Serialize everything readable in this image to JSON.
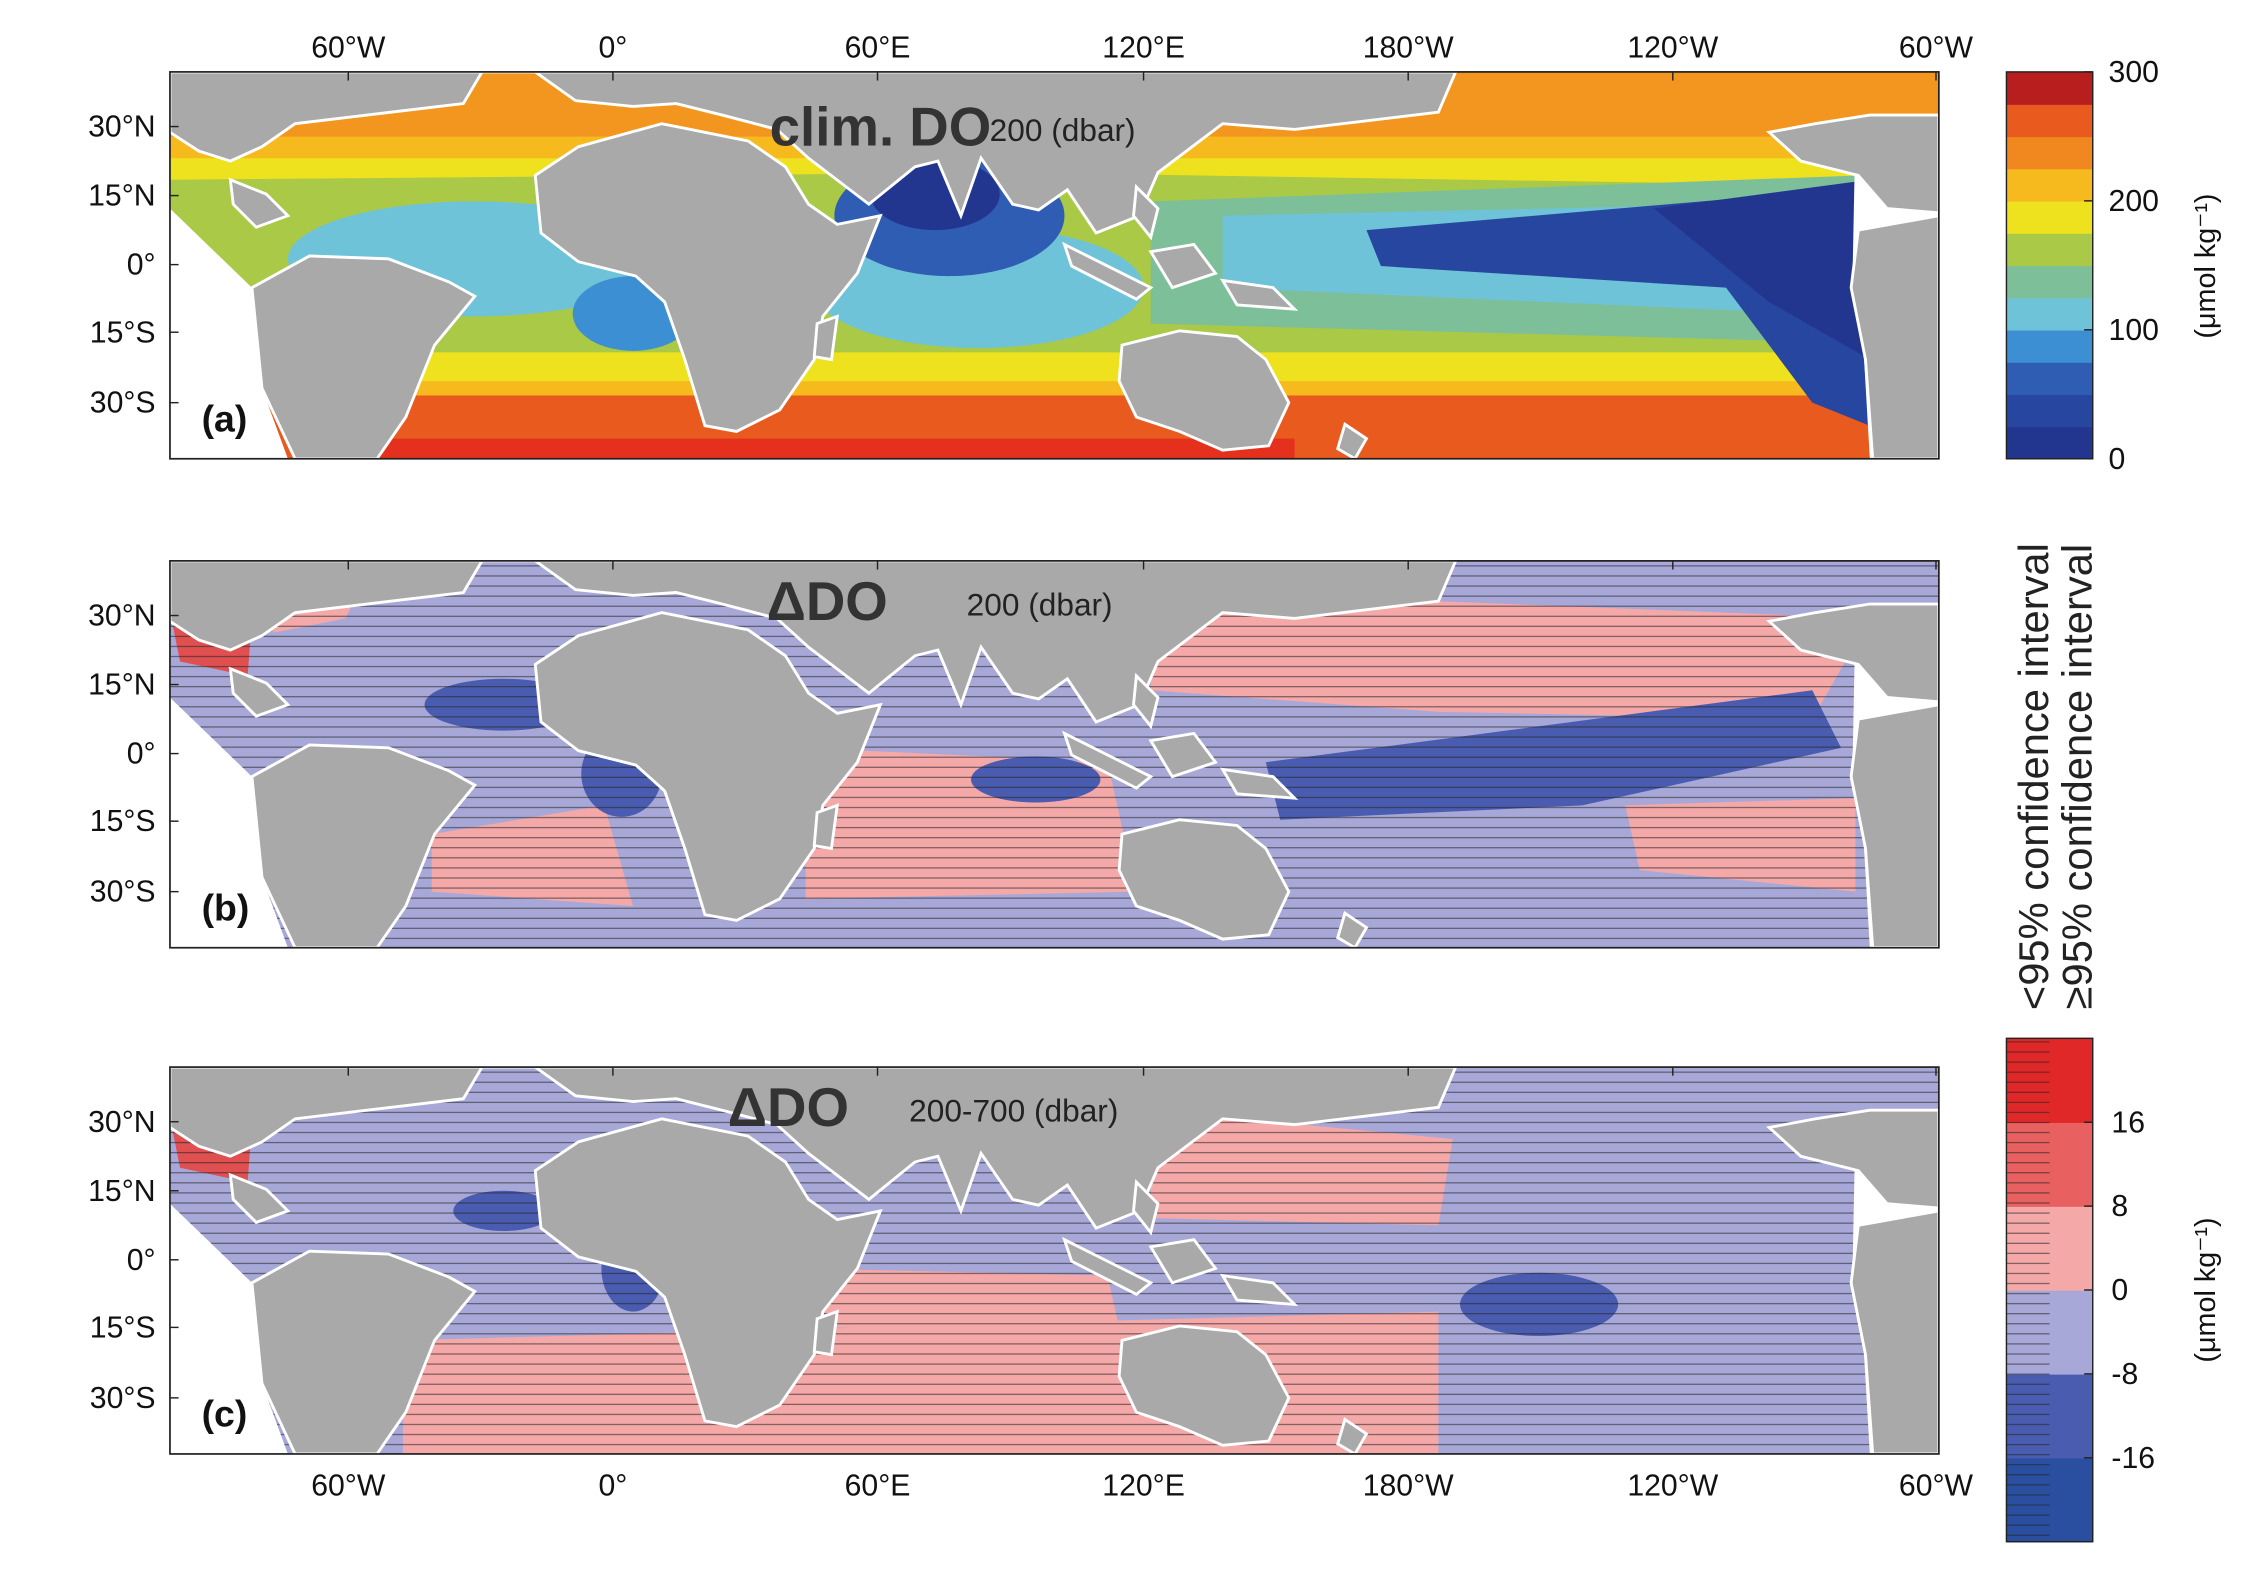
{
  "panels": [
    {
      "label": "(a)",
      "title": "clim. DO",
      "title_sub": "200 (dbar)"
    },
    {
      "label": "(b)",
      "title": "ΔDO",
      "title_sub": "200 (dbar)"
    },
    {
      "label": "(c)",
      "title": "ΔDO",
      "title_sub": "200-700 (dbar)"
    }
  ],
  "lat_ticks": [
    "30°N",
    "15°N",
    "0°",
    "15°S",
    "30°S"
  ],
  "lon_ticks": [
    "60°W",
    "0°",
    "60°E",
    "120°E",
    "180°W",
    "120°W",
    "60°W"
  ],
  "colorbar_clim": {
    "lim": [
      0,
      300
    ],
    "ticks": [
      0,
      100,
      200,
      300
    ],
    "unit": "(μmol kg⁻¹)",
    "colors": [
      "#22358f",
      "#2746a0",
      "#2f5db3",
      "#3d8fd3",
      "#6ec3d9",
      "#7dbf98",
      "#a9c947",
      "#eee21f",
      "#f7ba1e",
      "#f1871f",
      "#e85a1e",
      "#b81e1e"
    ]
  },
  "colorbar_delta": {
    "lim": [
      -24,
      24
    ],
    "ticks": [
      -16,
      -8,
      0,
      8,
      16
    ],
    "unit": "(μmol kg⁻¹)",
    "colors": [
      "#2a4fa0",
      "#4a5cb0",
      "#a8a8d8",
      "#f4a8a8",
      "#e86060",
      "#e02828"
    ]
  },
  "legend": [
    "<95% confidence interval",
    "≥95% confidence interval"
  ]
}
